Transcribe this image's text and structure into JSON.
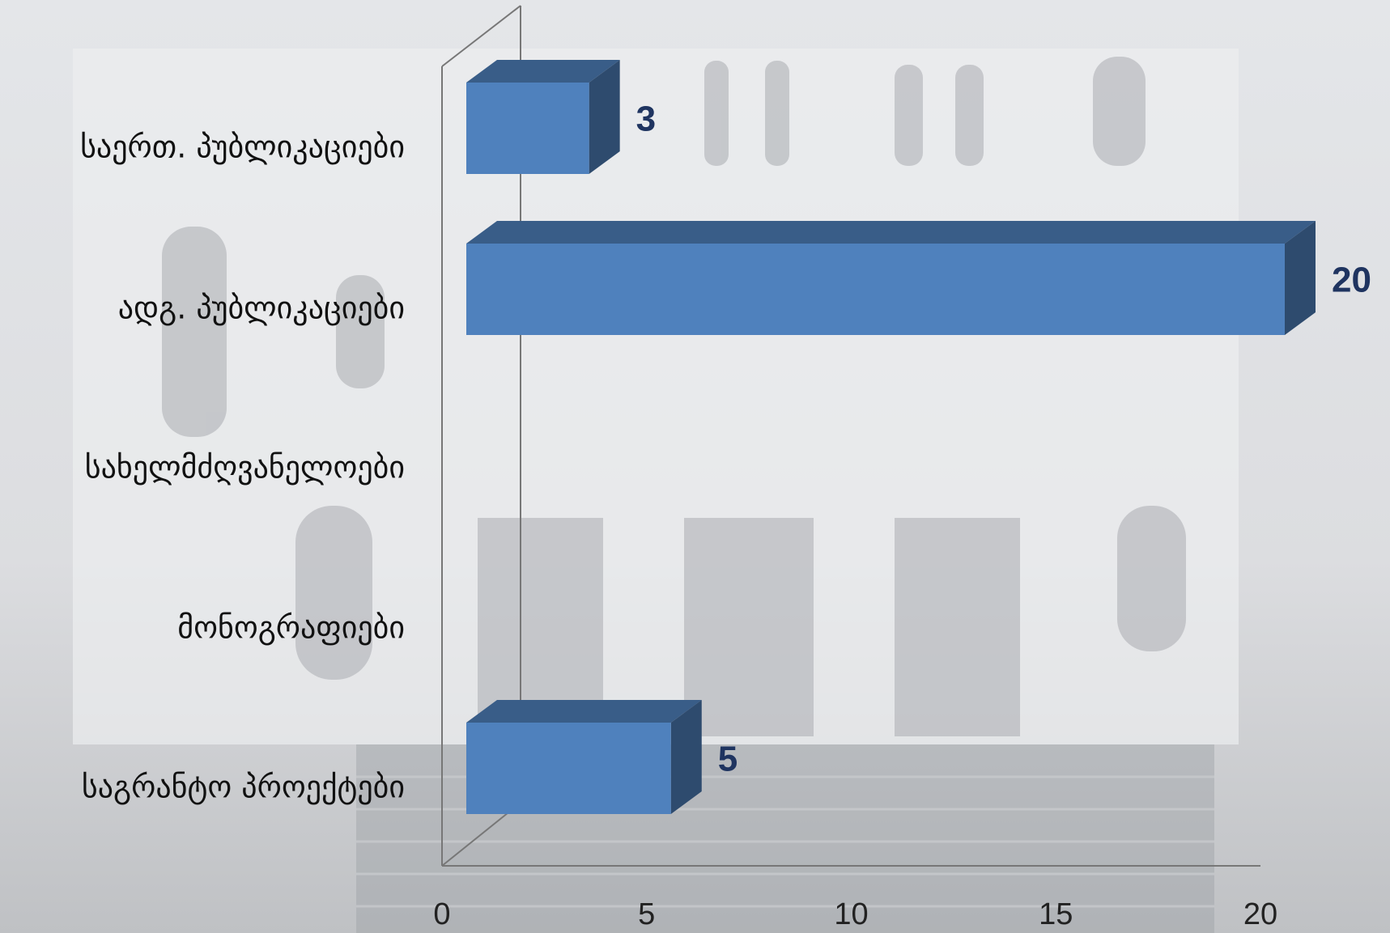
{
  "chart_data": {
    "type": "bar",
    "orientation": "horizontal",
    "categories": [
      "საერთ. პუბლიკაციები",
      "ადგ. პუბლიკაციები",
      "სახელმძღვანელოები",
      "მონოგრაფიები",
      "საგრანტო პროექტები"
    ],
    "values": [
      3,
      20,
      null,
      null,
      5
    ],
    "color": "#4f81bd",
    "xlim": [
      0,
      20
    ],
    "xticks": [
      0,
      5,
      10,
      15,
      20
    ]
  }
}
